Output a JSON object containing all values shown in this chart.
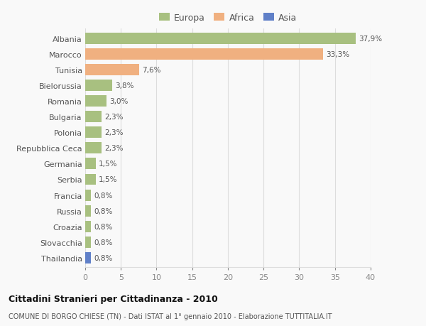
{
  "categories": [
    "Albania",
    "Marocco",
    "Tunisia",
    "Bielorussia",
    "Romania",
    "Bulgaria",
    "Polonia",
    "Repubblica Ceca",
    "Germania",
    "Serbia",
    "Francia",
    "Russia",
    "Croazia",
    "Slovacchia",
    "Thailandia"
  ],
  "values": [
    37.9,
    33.3,
    7.6,
    3.8,
    3.0,
    2.3,
    2.3,
    2.3,
    1.5,
    1.5,
    0.8,
    0.8,
    0.8,
    0.8,
    0.8
  ],
  "labels": [
    "37,9%",
    "33,3%",
    "7,6%",
    "3,8%",
    "3,0%",
    "2,3%",
    "2,3%",
    "2,3%",
    "1,5%",
    "1,5%",
    "0,8%",
    "0,8%",
    "0,8%",
    "0,8%",
    "0,8%"
  ],
  "continents": [
    "Europa",
    "Africa",
    "Africa",
    "Europa",
    "Europa",
    "Europa",
    "Europa",
    "Europa",
    "Europa",
    "Europa",
    "Europa",
    "Europa",
    "Europa",
    "Europa",
    "Asia"
  ],
  "colors": {
    "Europa": "#a8c080",
    "Africa": "#f0b080",
    "Asia": "#6080c8"
  },
  "xlim": [
    0,
    40
  ],
  "xticks": [
    0,
    5,
    10,
    15,
    20,
    25,
    30,
    35,
    40
  ],
  "title": "Cittadini Stranieri per Cittadinanza - 2010",
  "subtitle": "COMUNE DI BORGO CHIESE (TN) - Dati ISTAT al 1° gennaio 2010 - Elaborazione TUTTITALIA.IT",
  "background_color": "#f9f9f9",
  "grid_color": "#dddddd",
  "bar_height": 0.72,
  "figsize": [
    6.0,
    4.6
  ],
  "dpi": 100
}
